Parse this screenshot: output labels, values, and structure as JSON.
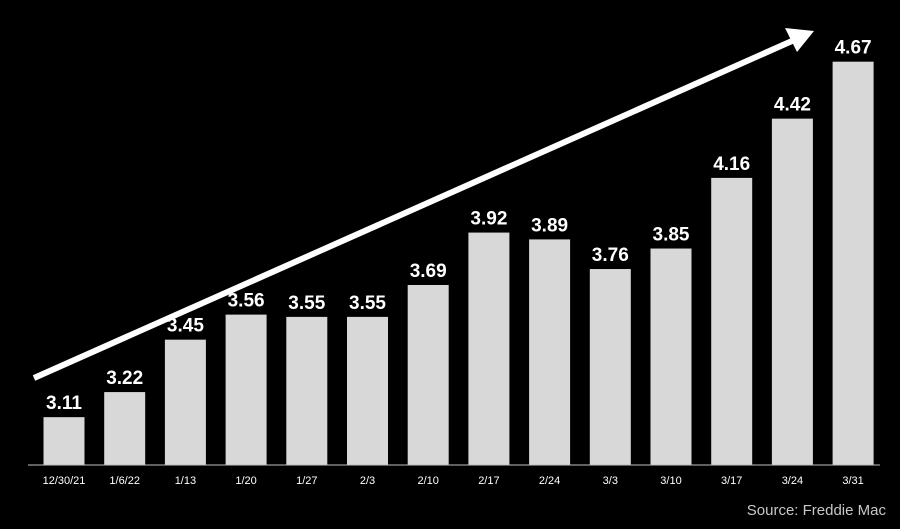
{
  "chart_data": {
    "type": "bar",
    "categories": [
      "12/30/21",
      "1/6/22",
      "1/13",
      "1/20",
      "1/27",
      "2/3",
      "2/10",
      "2/17",
      "2/24",
      "3/3",
      "3/10",
      "3/17",
      "3/24",
      "3/31"
    ],
    "values": [
      3.11,
      3.22,
      3.45,
      3.56,
      3.55,
      3.55,
      3.69,
      3.92,
      3.89,
      3.76,
      3.85,
      4.16,
      4.42,
      4.67
    ],
    "value_labels": [
      "3.11",
      "3.22",
      "3.45",
      "3.56",
      "3.55",
      "3.55",
      "3.69",
      "3.92",
      "3.89",
      "3.76",
      "3.85",
      "4.16",
      "4.42",
      "4.67"
    ],
    "ylim": [
      2.9,
      4.73
    ],
    "grid": false,
    "trend_arrow": true,
    "colors": {
      "background": "#000000",
      "bar": "#d8d8d8",
      "text": "#ffffff",
      "arrow": "#ffffff",
      "axis": "#bfbfbf"
    }
  },
  "source": "Source: Freddie Mac"
}
